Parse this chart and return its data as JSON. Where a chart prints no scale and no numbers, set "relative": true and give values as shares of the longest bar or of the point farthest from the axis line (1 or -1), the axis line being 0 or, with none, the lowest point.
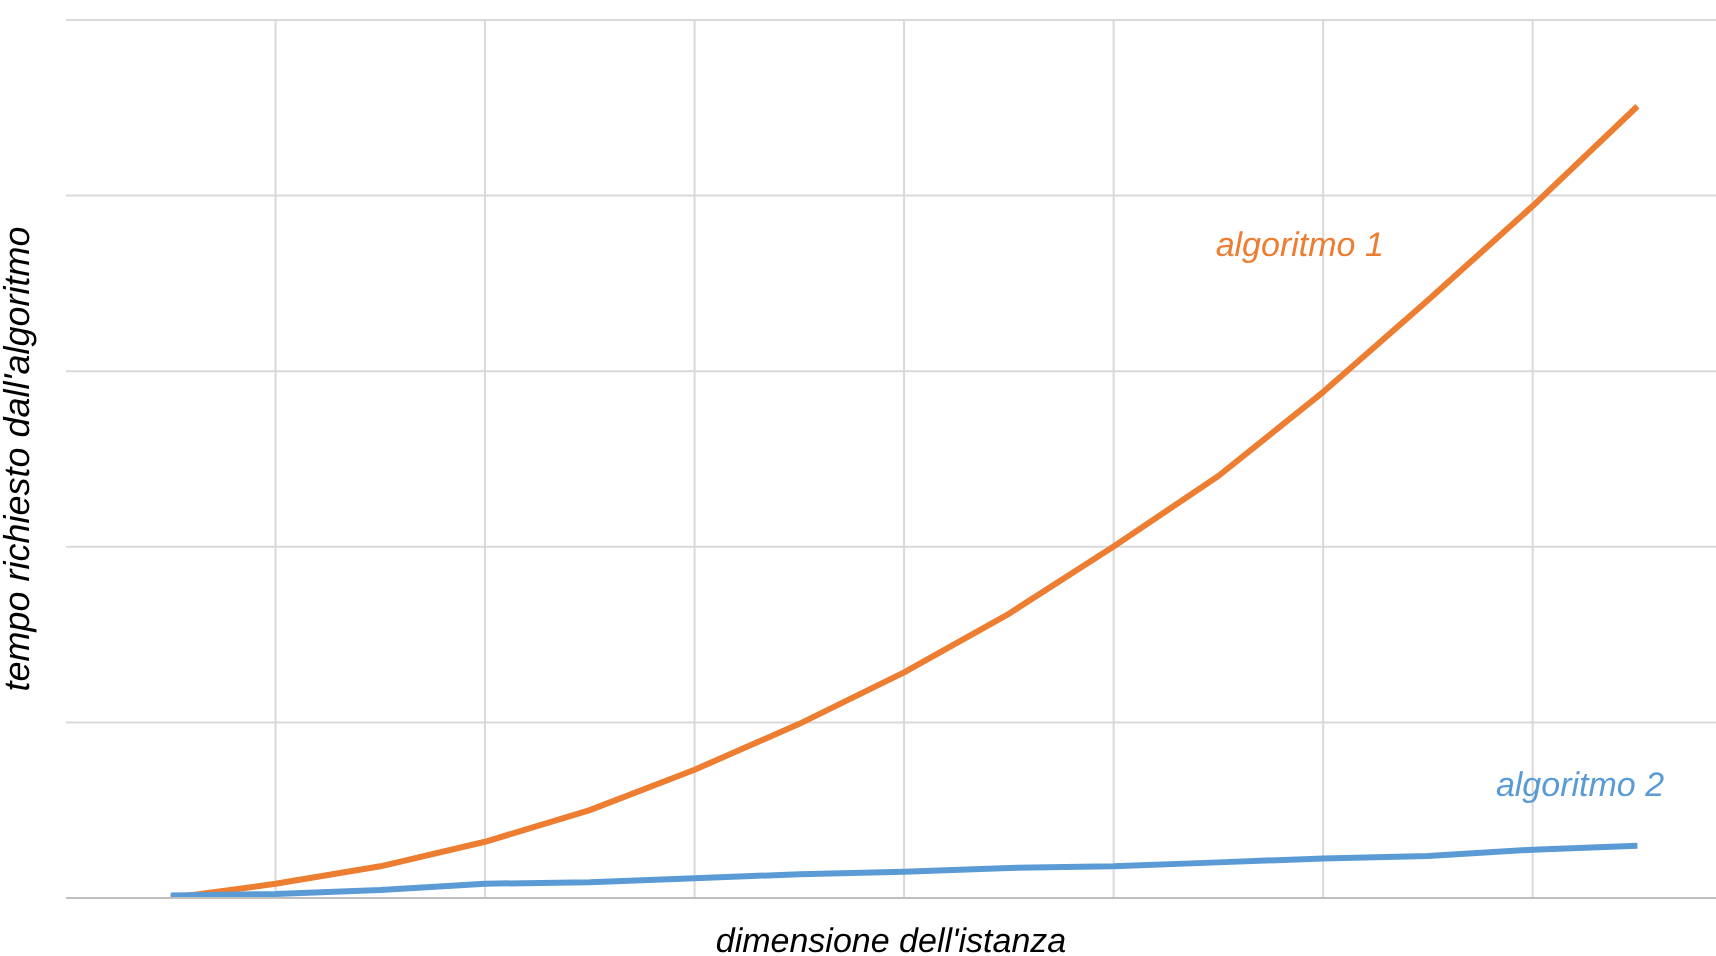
{
  "chart_data": {
    "type": "line",
    "relative": true,
    "xlabel": "dimensione dell'istanza",
    "ylabel": "tempo richiesto dall'algoritmo",
    "categories": [
      null,
      null,
      null,
      null,
      null,
      null,
      null,
      null,
      null,
      null,
      null,
      null,
      null,
      null,
      null
    ],
    "grid": true,
    "legend": false,
    "marker": "none",
    "line_style": "solid",
    "series": [
      {
        "name": "algoritmo 1",
        "color": "#ed7d31",
        "values": [
          0,
          0.018,
          0.04,
          0.071,
          0.111,
          0.162,
          0.22,
          0.285,
          0.359,
          0.444,
          0.533,
          0.639,
          0.755,
          0.874,
          1
        ]
      },
      {
        "name": "algoritmo 2",
        "color": "#5b9bd5",
        "values": [
          0.003,
          0.005,
          0.01,
          0.018,
          0.02,
          0.025,
          0.03,
          0.033,
          0.038,
          0.04,
          0.045,
          0.05,
          0.053,
          0.061,
          0.066
        ]
      }
    ]
  }
}
